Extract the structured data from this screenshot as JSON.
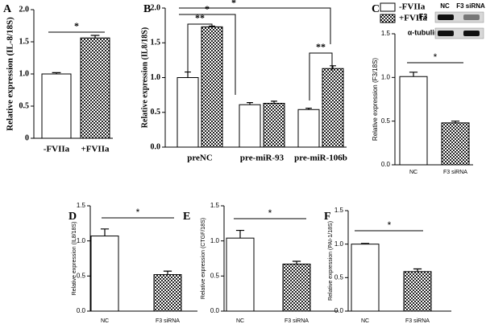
{
  "chart_data": [
    {
      "type": "bar",
      "panel": "A",
      "ylabel": "Relative expression (IL-8/18S)",
      "categories": [
        "-FVIIa",
        "+FVIIa"
      ],
      "values": [
        1.0,
        1.56
      ],
      "errors": [
        0.02,
        0.04
      ],
      "patterns": [
        "solid",
        "checkered"
      ],
      "color": "#ffffff",
      "ylim": [
        0,
        2.0
      ],
      "yticks": [
        0,
        0.5,
        {
          "value": 1.0,
          "label": "1.0"
        },
        1.5,
        {
          "value": 2.0,
          "label": "2.0"
        }
      ],
      "significance": [
        "*"
      ]
    },
    {
      "type": "bar",
      "panel": "B",
      "ylabel": "Relative expression (IL8/18S)",
      "categories": [
        "preNC",
        "pre-miR-93",
        "pre-miR-106b"
      ],
      "series": [
        {
          "name": "-FVIIa",
          "color": "#ffffff",
          "pattern": "solid",
          "values": [
            1.0,
            0.61,
            0.54
          ],
          "errors": [
            0.08,
            0.03,
            0.02
          ]
        },
        {
          "name": "+FVIIa",
          "color": "#ffffff",
          "pattern": "checkered",
          "values": [
            1.73,
            0.63,
            1.13
          ],
          "errors": [
            0.01,
            0.03,
            0.04
          ]
        }
      ],
      "ylim": [
        0,
        2.0
      ],
      "yticks": [
        {
          "value": 0,
          "label": "0.0"
        },
        0.5,
        {
          "value": 1.0,
          "label": "1.0"
        },
        1.5,
        {
          "value": 2.0,
          "label": "2.0"
        }
      ],
      "legend": "top-right",
      "significance": [
        "*",
        "*",
        "**",
        "**"
      ]
    },
    {
      "type": "bar",
      "panel": "C",
      "ylabel": "Relative expression (F3/18S)",
      "categories": [
        "NC",
        "F3 siRNA"
      ],
      "values": [
        1.01,
        0.48
      ],
      "errors": [
        0.05,
        0.02
      ],
      "patterns": [
        "solid",
        "checkered"
      ],
      "color": "#ffffff",
      "ylim": [
        0,
        1.5
      ],
      "yticks": [
        {
          "value": 0,
          "label": "0.0"
        },
        0.5,
        {
          "value": 1.0,
          "label": "1.0"
        },
        1.5
      ],
      "significance": [
        "*"
      ],
      "blot": {
        "lanes": [
          "NC",
          "F3 siRNA"
        ],
        "rows": [
          "F3",
          "α-tubulin"
        ]
      }
    },
    {
      "type": "bar",
      "panel": "D",
      "ylabel": "Relative expression (IL8/18S)",
      "categories": [
        "NC",
        "F3 siRNA"
      ],
      "values": [
        1.07,
        0.52
      ],
      "errors": [
        0.1,
        0.05
      ],
      "patterns": [
        "solid",
        "checkered"
      ],
      "color": "#ffffff",
      "ylim": [
        0,
        1.5
      ],
      "yticks": [
        {
          "value": 0,
          "label": "0.0"
        },
        0.5,
        {
          "value": 1.0,
          "label": "1.0"
        },
        1.5
      ],
      "significance": [
        "*"
      ]
    },
    {
      "type": "bar",
      "panel": "E",
      "ylabel": "Relative expression (CTGF/18S)",
      "categories": [
        "NC",
        "F3 siRNA"
      ],
      "values": [
        1.04,
        0.67
      ],
      "errors": [
        0.11,
        0.04
      ],
      "patterns": [
        "solid",
        "checkered"
      ],
      "color": "#ffffff",
      "ylim": [
        0,
        1.5
      ],
      "yticks": [
        {
          "value": 0,
          "label": "0.0"
        },
        0.5,
        {
          "value": 1.0,
          "label": "1.0"
        },
        1.5
      ],
      "significance": [
        "*"
      ]
    },
    {
      "type": "bar",
      "panel": "F",
      "ylabel": "Relative expression (PAI-1/18S)",
      "categories": [
        "NC",
        "F3 siRNA"
      ],
      "values": [
        1.0,
        0.59
      ],
      "errors": [
        0.01,
        0.04
      ],
      "patterns": [
        "solid",
        "checkered"
      ],
      "color": "#ffffff",
      "ylim": [
        0,
        1.5
      ],
      "yticks": [
        {
          "value": 0,
          "label": "0.0"
        },
        0.5,
        {
          "value": 1.0,
          "label": "1.0"
        },
        1.5
      ],
      "significance": [
        "*"
      ]
    }
  ]
}
